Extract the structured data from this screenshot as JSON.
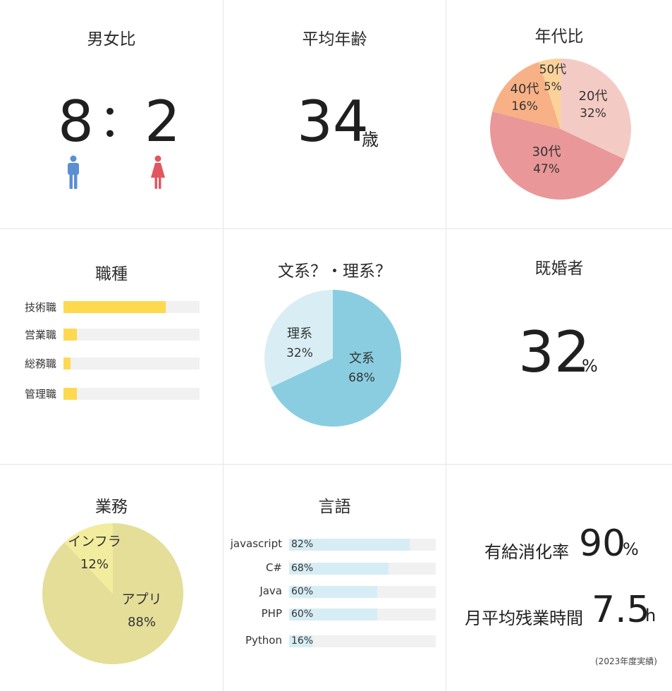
{
  "gender": {
    "title": "男女比",
    "male": "8",
    "separator": "：",
    "female": "2",
    "male_icon": "male-person-icon",
    "female_icon": "female-person-icon",
    "male_color": "#5b8ed3",
    "female_color": "#e2575f"
  },
  "age": {
    "title": "平均年齢",
    "value": "34",
    "unit": "歳"
  },
  "marriage": {
    "title": "既婚者",
    "value": "32",
    "unit": "%"
  },
  "stats": {
    "paid_leave_label": "有給消化率",
    "paid_leave_value": "90",
    "paid_leave_unit": "%",
    "overtime_label": "月平均残業時間",
    "overtime_value": "7.5",
    "overtime_unit": "h",
    "note": "(2023年度実績)"
  },
  "chart_data": [
    {
      "type": "pie",
      "title": "年代比",
      "slices": [
        {
          "label": "20代",
          "value": 32,
          "text": "32%",
          "color": "#f4cbc4"
        },
        {
          "label": "30代",
          "value": 47,
          "text": "47%",
          "color": "#e99798"
        },
        {
          "label": "40代",
          "value": 16,
          "text": "16%",
          "color": "#f8b186"
        },
        {
          "label": "50代",
          "value": 5,
          "text": "5%",
          "color": "#fbd39a"
        }
      ]
    },
    {
      "type": "bar",
      "title": "職種",
      "categories": [
        "技術職",
        "営業職",
        "総務職",
        "管理職"
      ],
      "values": [
        75,
        10,
        5,
        10
      ],
      "color": "#fdd94f",
      "track_color": "#f1f1f1"
    },
    {
      "type": "pie",
      "title": "文系？・理系？",
      "slices": [
        {
          "label": "文系",
          "value": 68,
          "text": "68%",
          "color": "#8acde0"
        },
        {
          "label": "理系",
          "value": 32,
          "text": "32%",
          "color": "#d9eef4"
        }
      ]
    },
    {
      "type": "pie",
      "title": "業務",
      "slices": [
        {
          "label": "アプリ",
          "value": 88,
          "text": "88%",
          "color": "#e4de99"
        },
        {
          "label": "インフラ",
          "value": 12,
          "text": "12%",
          "color": "#f2ed9e"
        }
      ]
    },
    {
      "type": "bar",
      "title": "言語",
      "categories": [
        "javascript",
        "C#",
        "Java",
        "PHP",
        "Python"
      ],
      "values": [
        82,
        68,
        60,
        60,
        16
      ],
      "labels": [
        "82%",
        "68%",
        "60%",
        "60%",
        "16%"
      ],
      "color": "#d7edf5",
      "track_color": "#f1f1f1"
    }
  ]
}
